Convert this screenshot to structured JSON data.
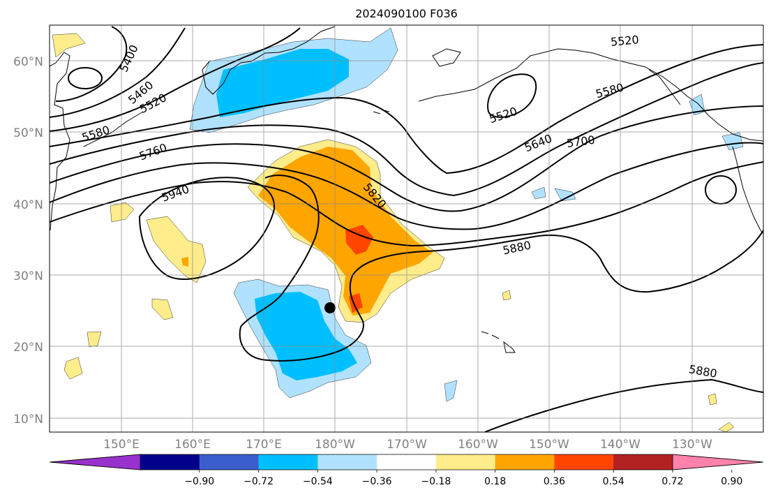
{
  "title": "2024090100 F036",
  "lat_labels": [
    "60°N",
    "50°N",
    "40°N",
    "30°N",
    "20°N",
    "10°N"
  ],
  "lon_labels": [
    "150°E",
    "160°E",
    "170°E",
    "180°W",
    "170°W",
    "160°W",
    "150°W",
    "140°W",
    "130°W"
  ],
  "contour_labels": [
    "5400",
    "5460",
    "5520",
    "5520",
    "5520",
    "5580",
    "5580",
    "5640",
    "5700",
    "5760",
    "5820",
    "5880",
    "5880",
    "5940"
  ],
  "colorbar": {
    "ticks": [
      "−0.90",
      "−0.72",
      "−0.54",
      "−0.36",
      "−0.18",
      "0.18",
      "0.36",
      "0.54",
      "0.72",
      "0.90"
    ],
    "colors": [
      "#9932cc",
      "#00008b",
      "#3a5fcd",
      "#00bfff",
      "#b0e2ff",
      "#ffffff",
      "#ffec8b",
      "#ffa500",
      "#ff4500",
      "#b22222",
      "#ff82ab"
    ]
  },
  "marker": {
    "label": "",
    "lat": 25,
    "lon": -180.8
  }
}
